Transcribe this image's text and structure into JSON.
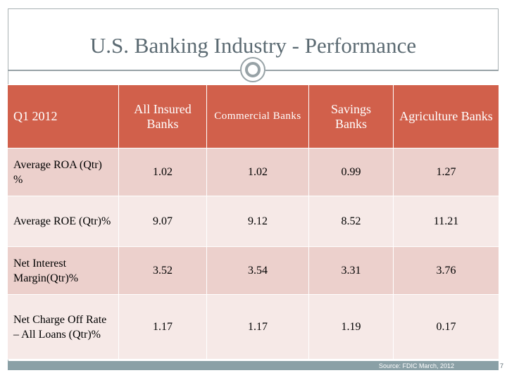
{
  "slide": {
    "title": "U.S. Banking Industry - Performance",
    "source": "Source: FDIC March, 2012",
    "page_number": "7"
  },
  "table": {
    "corner": "Q1 2012",
    "columns": [
      "All Insured Banks",
      "Commercial Banks",
      "Savings Banks",
      "Agriculture Banks"
    ],
    "rows": [
      {
        "label": "Average ROA (Qtr) %",
        "values": [
          "1.02",
          "1.02",
          "0.99",
          "1.27"
        ]
      },
      {
        "label": "Average ROE (Qtr)%",
        "values": [
          "9.07",
          "9.12",
          "8.52",
          "11.21"
        ]
      },
      {
        "label": "Net Interest Margin(Qtr)%",
        "values": [
          "3.52",
          "3.54",
          "3.31",
          "3.76"
        ]
      },
      {
        "label": "Net Charge Off Rate – All Loans (Qtr)%",
        "values": [
          "1.17",
          "1.17",
          "1.19",
          "0.17"
        ]
      }
    ]
  },
  "colors": {
    "header_bg": "#d1604b",
    "row_odd_bg": "#ecd0cc",
    "row_even_bg": "#f6e9e7",
    "accent_gray": "#97a2a6"
  }
}
